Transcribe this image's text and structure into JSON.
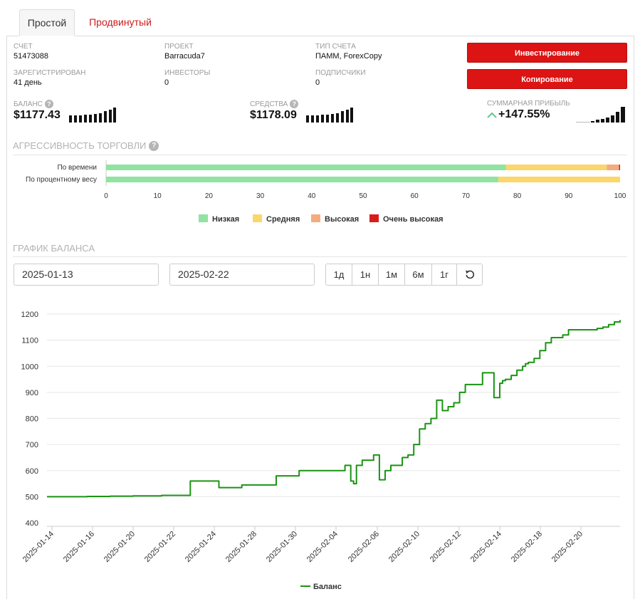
{
  "tabs": {
    "simple": "Простой",
    "advanced": "Продвинутый"
  },
  "account": {
    "account_label": "СЧЕТ",
    "account_value": "51473088",
    "project_label": "ПРОЕКТ",
    "project_value": "Barracuda7",
    "type_label": "ТИП СЧЕТА",
    "type_value": "ПАММ, ForexCopy",
    "registered_label": "ЗАРЕГИСТРИРОВАН",
    "registered_value": "41 день",
    "investors_label": "ИНВЕСТОРЫ",
    "investors_value": "0",
    "subscribers_label": "ПОДПИСЧИКИ",
    "subscribers_value": "0"
  },
  "buttons": {
    "invest": "Инвестирование",
    "copy": "Копирование"
  },
  "stats": {
    "balance_label": "БАЛАНС",
    "balance_value": "$1177.43",
    "equity_label": "СРЕДСТВА",
    "equity_value": "$1178.09",
    "profit_label": "СУММАРНАЯ ПРИБЫЛЬ",
    "profit_value": "+147.55%"
  },
  "aggr": {
    "title": "АГРЕССИВНОСТЬ ТОРГОВЛИ",
    "rows": [
      {
        "label": "По времени",
        "values": [
          77.8,
          19.6,
          2.4,
          0.2
        ]
      },
      {
        "label": "По процентному весу",
        "values": [
          76.3,
          23.7,
          0,
          0
        ]
      }
    ],
    "ticks": [
      "0",
      "10",
      "20",
      "30",
      "40",
      "50",
      "60",
      "70",
      "80",
      "90",
      "100"
    ],
    "legend": [
      {
        "name": "Низкая",
        "color": "#90e3a0"
      },
      {
        "name": "Средняя",
        "color": "#fbd66a"
      },
      {
        "name": "Высокая",
        "color": "#f5ab7c"
      },
      {
        "name": "Очень высокая",
        "color": "#d81c1c"
      }
    ]
  },
  "balance_chart": {
    "title": "ГРАФИК БАЛАНСА",
    "date_from": "2025-01-13",
    "date_to": "2025-02-22",
    "ranges": [
      "1д",
      "1н",
      "1м",
      "6м",
      "1г"
    ],
    "reset_icon": "reset-icon"
  },
  "chart_data": {
    "type": "line",
    "ylim": [
      400,
      1200
    ],
    "yticks": [
      400,
      500,
      600,
      700,
      800,
      900,
      1000,
      1100,
      1200
    ],
    "xticks": [
      "2025-01-14",
      "2025-01-16",
      "2025-01-20",
      "2025-01-22",
      "2025-01-24",
      "2025-01-28",
      "2025-01-30",
      "2025-02-04",
      "2025-02-06",
      "2025-02-10",
      "2025-02-12",
      "2025-02-14",
      "2025-02-18",
      "2025-02-20"
    ],
    "line_color": "#1a9413",
    "series": [
      {
        "name": "Баланс",
        "x": [
          0,
          4,
          7,
          11,
          15,
          20,
          25,
          30,
          34,
          40,
          44,
          49,
          52,
          53,
          53.5,
          54,
          55,
          56,
          57,
          58,
          59,
          60,
          62,
          63,
          64,
          65,
          66,
          67,
          68,
          69,
          70,
          71,
          71.5,
          72,
          73,
          74,
          75,
          76,
          77,
          78,
          79,
          79.5,
          80,
          81,
          82,
          83,
          83.5,
          84,
          85,
          86,
          87,
          88,
          89,
          90,
          91,
          92,
          93,
          94,
          95,
          96,
          97,
          98,
          99,
          100
        ],
        "y": [
          500,
          500,
          501,
          502,
          503,
          505,
          560,
          535,
          545,
          580,
          600,
          600,
          620,
          560,
          550,
          620,
          640,
          640,
          660,
          565,
          600,
          620,
          650,
          660,
          700,
          760,
          780,
          800,
          870,
          830,
          845,
          860,
          860,
          900,
          930,
          930,
          930,
          975,
          975,
          880,
          935,
          945,
          950,
          965,
          985,
          1000,
          1010,
          1015,
          1030,
          1060,
          1090,
          1110,
          1110,
          1120,
          1140,
          1140,
          1140,
          1140,
          1140,
          1145,
          1150,
          1160,
          1170,
          1177
        ]
      }
    ],
    "legend": "Баланс"
  }
}
